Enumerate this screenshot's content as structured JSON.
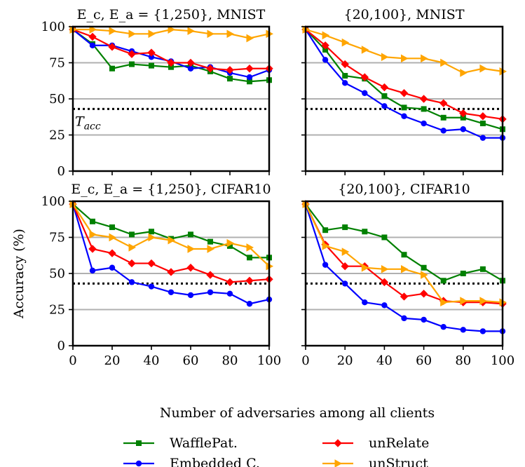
{
  "chart_data": {
    "type": "line",
    "threshold": {
      "label": "T_acc",
      "label_main": "T",
      "label_sub": "acc",
      "value": 43
    },
    "xlabel": "Number of adversaries among all clients",
    "ylabel": "Accuracy (%)",
    "xlim": [
      0,
      100
    ],
    "ylim": [
      0,
      100
    ],
    "xticks": [
      "0",
      "20",
      "40",
      "60",
      "80",
      "100"
    ],
    "yticks": [
      "0",
      "25",
      "50",
      "75",
      "100"
    ],
    "x": [
      0,
      10,
      20,
      30,
      40,
      50,
      60,
      70,
      80,
      90,
      100
    ],
    "legend": [
      {
        "name": "WafflePat.",
        "color": "#008000",
        "marker": "square"
      },
      {
        "name": "Embedded C.",
        "color": "#0000ff",
        "marker": "circle"
      },
      {
        "name": "unRelate",
        "color": "#ff0000",
        "marker": "diamond"
      },
      {
        "name": "unStruct",
        "color": "#ffa500",
        "marker": "triangle-right"
      }
    ],
    "panels": [
      {
        "title": "E_c, E_a = {1,250}, MNIST",
        "series": [
          {
            "name": "WafflePat.",
            "values": [
              98,
              88,
              71,
              74,
              73,
              72,
              73,
              69,
              64,
              62,
              63
            ]
          },
          {
            "name": "Embedded C.",
            "values": [
              98,
              87,
              87,
              83,
              79,
              76,
              71,
              72,
              68,
              65,
              70
            ]
          },
          {
            "name": "unRelate",
            "values": [
              98,
              93,
              86,
              81,
              82,
              75,
              75,
              71,
              70,
              71,
              71
            ]
          },
          {
            "name": "unStruct",
            "values": [
              98,
              98,
              97,
              95,
              95,
              98,
              97,
              95,
              95,
              92,
              95
            ]
          }
        ]
      },
      {
        "title": "{20,100}, MNIST",
        "series": [
          {
            "name": "WafflePat.",
            "values": [
              98,
              84,
              66,
              64,
              52,
              44,
              43,
              37,
              37,
              33,
              29
            ]
          },
          {
            "name": "Embedded C.",
            "values": [
              98,
              77,
              61,
              54,
              45,
              38,
              33,
              28,
              29,
              23,
              23
            ]
          },
          {
            "name": "unRelate",
            "values": [
              98,
              87,
              74,
              65,
              58,
              54,
              50,
              47,
              40,
              38,
              36
            ]
          },
          {
            "name": "unStruct",
            "values": [
              98,
              94,
              89,
              84,
              79,
              78,
              78,
              75,
              68,
              71,
              69
            ]
          }
        ]
      },
      {
        "title": "E_c, E_a = {1,250}, CIFAR10",
        "series": [
          {
            "name": "WafflePat.",
            "values": [
              98,
              86,
              82,
              77,
              79,
              74,
              77,
              72,
              69,
              61,
              61
            ]
          },
          {
            "name": "Embedded C.",
            "values": [
              98,
              52,
              54,
              44,
              41,
              37,
              35,
              37,
              36,
              29,
              32
            ]
          },
          {
            "name": "unRelate",
            "values": [
              98,
              67,
              64,
              57,
              57,
              51,
              54,
              49,
              44,
              45,
              46
            ]
          },
          {
            "name": "unStruct",
            "values": [
              98,
              77,
              75,
              68,
              75,
              73,
              67,
              67,
              71,
              68,
              55
            ]
          }
        ]
      },
      {
        "title": "{20,100}, CIFAR10",
        "series": [
          {
            "name": "WafflePat.",
            "values": [
              98,
              80,
              82,
              79,
              75,
              63,
              54,
              45,
              50,
              53,
              45
            ]
          },
          {
            "name": "Embedded C.",
            "values": [
              98,
              56,
              43,
              30,
              28,
              19,
              18,
              13,
              11,
              10,
              10
            ]
          },
          {
            "name": "unRelate",
            "values": [
              98,
              70,
              55,
              55,
              44,
              34,
              36,
              31,
              30,
              30,
              29
            ]
          },
          {
            "name": "unStruct",
            "values": [
              98,
              69,
              65,
              54,
              53,
              53,
              49,
              30,
              31,
              31,
              30
            ]
          }
        ]
      }
    ]
  }
}
